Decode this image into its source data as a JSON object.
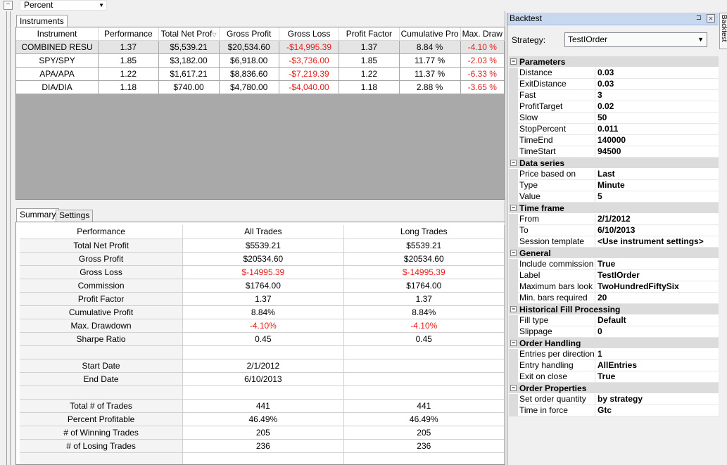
{
  "toolbar": {
    "mode_select": "Percent"
  },
  "instruments": {
    "tab_label": "Instruments",
    "columns": [
      "Instrument",
      "Performance",
      "Total Net Prof",
      "Gross Profit",
      "Gross Loss",
      "Profit Factor",
      "Cumulative Pro",
      "Max. Draw"
    ],
    "rows": [
      [
        "COMBINED RESU",
        "1.37",
        "$5,539.21",
        "$20,534.60",
        "-$14,995.39",
        "1.37",
        "8.84 %",
        "-4.10 %"
      ],
      [
        "SPY/SPY",
        "1.85",
        "$3,182.00",
        "$6,918.00",
        "-$3,736.00",
        "1.85",
        "11.77 %",
        "-2.03 %"
      ],
      [
        "APA/APA",
        "1.22",
        "$1,617.21",
        "$8,836.60",
        "-$7,219.39",
        "1.22",
        "11.37 %",
        "-6.33 %"
      ],
      [
        "DIA/DIA",
        "1.18",
        "$740.00",
        "$4,780.00",
        "-$4,040.00",
        "1.18",
        "2.88 %",
        "-3.65 %"
      ]
    ]
  },
  "summary": {
    "tabs": [
      "Summary",
      "Settings"
    ],
    "columns": [
      "Performance",
      "All Trades",
      "Long Trades"
    ],
    "rows": [
      [
        "Total Net Profit",
        "$5539.21",
        "$5539.21"
      ],
      [
        "Gross Profit",
        "$20534.60",
        "$20534.60"
      ],
      [
        "Gross Loss",
        "$-14995.39",
        "$-14995.39"
      ],
      [
        "Commission",
        "$1764.00",
        "$1764.00"
      ],
      [
        "Profit Factor",
        "1.37",
        "1.37"
      ],
      [
        "Cumulative Profit",
        "8.84%",
        "8.84%"
      ],
      [
        "Max. Drawdown",
        "-4.10%",
        "-4.10%"
      ],
      [
        "Sharpe Ratio",
        "0.45",
        "0.45"
      ],
      [
        "",
        "",
        ""
      ],
      [
        "Start Date",
        "2/1/2012",
        ""
      ],
      [
        "End Date",
        "6/10/2013",
        ""
      ],
      [
        "",
        "",
        ""
      ],
      [
        "Total # of Trades",
        "441",
        "441"
      ],
      [
        "Percent Profitable",
        "46.49%",
        "46.49%"
      ],
      [
        "# of Winning Trades",
        "205",
        "205"
      ],
      [
        "# of Losing Trades",
        "236",
        "236"
      ],
      [
        "",
        "",
        ""
      ]
    ]
  },
  "backtest": {
    "title": "Backtest",
    "side_tab": "Backtest",
    "strategy_label": "Strategy:",
    "strategy_value": "TestIOrder",
    "categories": [
      {
        "name": "Parameters",
        "props": [
          [
            "Distance",
            "0.03"
          ],
          [
            "ExitDistance",
            "0.03"
          ],
          [
            "Fast",
            "3"
          ],
          [
            "ProfitTarget",
            "0.02"
          ],
          [
            "Slow",
            "50"
          ],
          [
            "StopPercent",
            "0.011"
          ],
          [
            "TimeEnd",
            "140000"
          ],
          [
            "TimeStart",
            "94500"
          ]
        ]
      },
      {
        "name": "Data series",
        "props": [
          [
            "Price based on",
            "Last"
          ],
          [
            "Type",
            "Minute"
          ],
          [
            "Value",
            "5"
          ]
        ]
      },
      {
        "name": "Time frame",
        "props": [
          [
            "From",
            "2/1/2012"
          ],
          [
            "To",
            "6/10/2013"
          ],
          [
            "Session template",
            "<Use instrument settings>"
          ]
        ]
      },
      {
        "name": "General",
        "props": [
          [
            "Include commission",
            "True"
          ],
          [
            "Label",
            "TestIOrder"
          ],
          [
            "Maximum bars look b",
            "TwoHundredFiftySix"
          ],
          [
            "Min. bars required",
            "20"
          ]
        ]
      },
      {
        "name": "Historical Fill Processing",
        "props": [
          [
            "Fill type",
            "Default"
          ],
          [
            "Slippage",
            "0"
          ]
        ]
      },
      {
        "name": "Order Handling",
        "props": [
          [
            "Entries per direction",
            "1"
          ],
          [
            "Entry handling",
            "AllEntries"
          ],
          [
            "Exit on close",
            "True"
          ]
        ]
      },
      {
        "name": "Order Properties",
        "props": [
          [
            "Set order quantity",
            "by strategy"
          ],
          [
            "Time in force",
            "Gtc"
          ]
        ]
      }
    ]
  },
  "colors": {
    "negative": "#e8201c",
    "title_bar": "#c7d8ee",
    "empty_area": "#a9a9a9"
  }
}
